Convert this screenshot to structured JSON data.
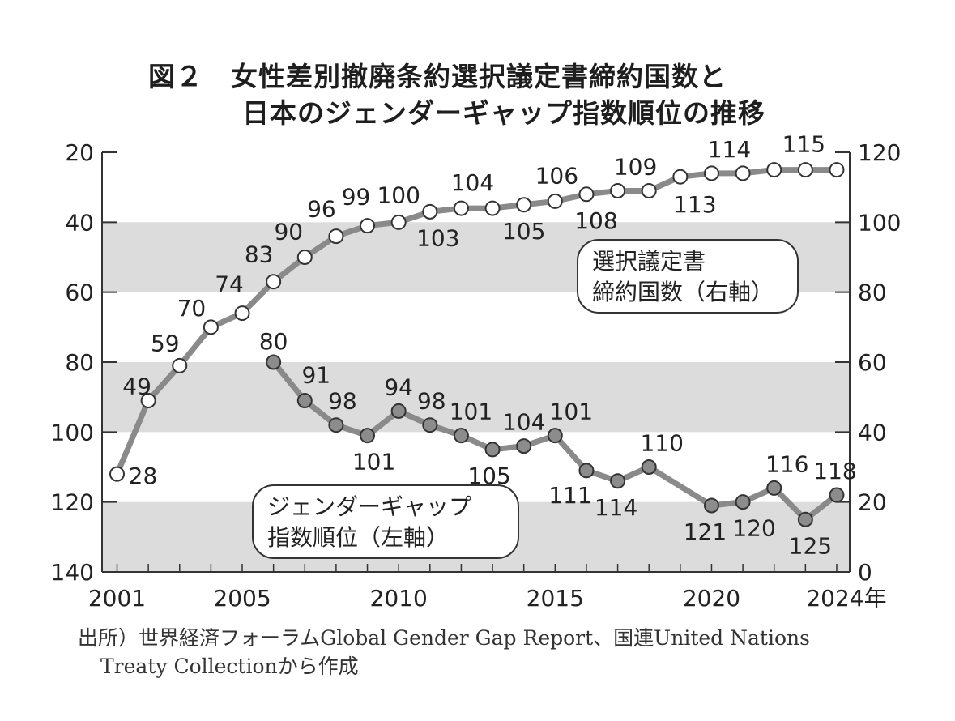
{
  "title": {
    "line1": "図２　女性差別撤廃条約選択議定書締約国数と",
    "line2": "日本のジェンダーギャップ指数順位の推移"
  },
  "source": {
    "line1": "出所）世界経済フォーラムGlobal Gender Gap Report、国連United Nations",
    "line2": "Treaty Collectionから作成"
  },
  "chart_data": {
    "type": "line",
    "x": [
      2001,
      2002,
      2003,
      2004,
      2005,
      2006,
      2007,
      2008,
      2009,
      2010,
      2011,
      2012,
      2013,
      2014,
      2015,
      2016,
      2017,
      2018,
      2019,
      2020,
      2021,
      2022,
      2023,
      2024
    ],
    "x_ticks": [
      "2001",
      "2005",
      "2010",
      "2015",
      "2020",
      "2024年"
    ],
    "left_axis": {
      "ticks": [
        "20",
        "40",
        "60",
        "80",
        "100",
        "120",
        "140"
      ],
      "range": [
        20,
        140
      ],
      "inverted": true
    },
    "right_axis": {
      "ticks": [
        "120",
        "100",
        "80",
        "60",
        "40",
        "20",
        "0"
      ],
      "range": [
        0,
        120
      ]
    },
    "bands": [
      [
        40,
        60
      ],
      [
        80,
        100
      ],
      [
        120,
        140
      ]
    ],
    "series": [
      {
        "name": "選択議定書締約国数（右軸）",
        "label_lines": [
          "選択議定書",
          "締約国数（右軸）"
        ],
        "axis": "right",
        "marker": "white",
        "x": [
          2001,
          2002,
          2003,
          2004,
          2005,
          2006,
          2007,
          2008,
          2009,
          2010,
          2011,
          2012,
          2013,
          2014,
          2015,
          2016,
          2017,
          2018,
          2019,
          2020,
          2021,
          2022,
          2023,
          2024
        ],
        "values": [
          28,
          49,
          59,
          70,
          74,
          83,
          90,
          96,
          99,
          100,
          103,
          104,
          104,
          105,
          106,
          108,
          109,
          109,
          113,
          114,
          114,
          115,
          115,
          115
        ],
        "data_labels": [
          {
            "x": 2001,
            "text": "28"
          },
          {
            "x": 2002,
            "text": "49"
          },
          {
            "x": 2003,
            "text": "59"
          },
          {
            "x": 2004,
            "text": "70"
          },
          {
            "x": 2005,
            "text": "74"
          },
          {
            "x": 2006,
            "text": "83"
          },
          {
            "x": 2007,
            "text": "90"
          },
          {
            "x": 2008,
            "text": "96"
          },
          {
            "x": 2009,
            "text": "99"
          },
          {
            "x": 2010,
            "text": "100"
          },
          {
            "x": 2011,
            "text": "103"
          },
          {
            "x": 2012,
            "text": "104"
          },
          {
            "x": 2014,
            "text": "105"
          },
          {
            "x": 2015,
            "text": "106"
          },
          {
            "x": 2016,
            "text": "108"
          },
          {
            "x": 2017,
            "text": "109"
          },
          {
            "x": 2019,
            "text": "113"
          },
          {
            "x": 2020,
            "text": "114"
          },
          {
            "x": 2023,
            "text": "115"
          }
        ]
      },
      {
        "name": "ジェンダーギャップ指数順位（左軸）",
        "label_lines": [
          "ジェンダーギャップ",
          "指数順位（左軸）"
        ],
        "axis": "left",
        "marker": "gray",
        "x": [
          2006,
          2007,
          2008,
          2009,
          2010,
          2011,
          2012,
          2013,
          2014,
          2015,
          2016,
          2017,
          2018,
          2019,
          2020,
          2021,
          2022,
          2023,
          2024
        ],
        "values": [
          80,
          91,
          98,
          101,
          94,
          98,
          101,
          105,
          104,
          101,
          111,
          114,
          110,
          null,
          121,
          120,
          116,
          125,
          118
        ],
        "data_labels": [
          {
            "x": 2006,
            "text": "80"
          },
          {
            "x": 2007,
            "text": "91"
          },
          {
            "x": 2008,
            "text": "98"
          },
          {
            "x": 2009,
            "text": "101"
          },
          {
            "x": 2010,
            "text": "94"
          },
          {
            "x": 2011,
            "text": "98"
          },
          {
            "x": 2012,
            "text": "101"
          },
          {
            "x": 2013,
            "text": "105"
          },
          {
            "x": 2014,
            "text": "104"
          },
          {
            "x": 2015,
            "text": "101"
          },
          {
            "x": 2016,
            "text": "111"
          },
          {
            "x": 2017,
            "text": "114"
          },
          {
            "x": 2018,
            "text": "110"
          },
          {
            "x": 2020,
            "text": "121"
          },
          {
            "x": 2021,
            "text": "120"
          },
          {
            "x": 2022,
            "text": "116"
          },
          {
            "x": 2023,
            "text": "125"
          },
          {
            "x": 2024,
            "text": "118"
          }
        ]
      }
    ],
    "colors": {
      "band": "#dcdcdc",
      "line": "#8a8a8a",
      "gray_marker": "#8c8c8c",
      "axis": "#333333"
    }
  }
}
